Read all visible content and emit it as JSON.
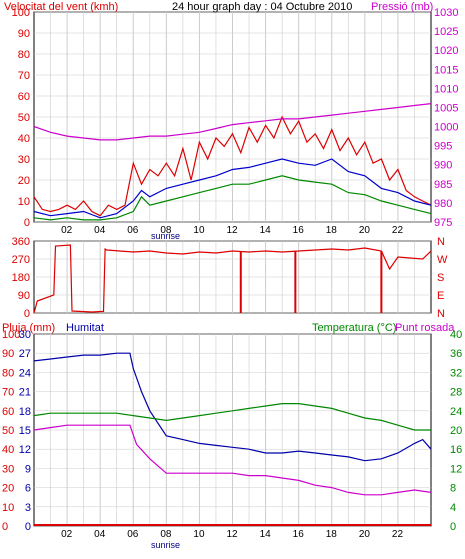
{
  "header": {
    "wind_label": "Velocitat del vent (kmh)",
    "title": "24 hour graph day : 04 Octubre 2010",
    "pressure_label": "Pressió (mb)"
  },
  "bottom_header": {
    "rain_label": "Pluja (mm)",
    "humidity_label": "Humitat",
    "temp_label": "Temperatura (°C)",
    "dew_label": "Punt rosada"
  },
  "x_ticks": [
    "02",
    "04",
    "06",
    "08",
    "10",
    "12",
    "14",
    "16",
    "18",
    "20",
    "22"
  ],
  "sunrise_label": "sunrise",
  "colors": {
    "wind_gust": "#dd0000",
    "wind_avg": "#0000cc",
    "wind_speed": "#008800",
    "pressure": "#cc00cc",
    "direction": "#dd0000",
    "humidity": "#0000aa",
    "temperature": "#008800",
    "dew_point": "#cc00cc",
    "rain": "#dd0000",
    "grid": "#cccccc",
    "frame": "#000000"
  },
  "chart_data": [
    {
      "type": "line",
      "panel": "wind_pressure",
      "x_unit": "hour",
      "xlim": [
        0,
        24
      ],
      "y_left": {
        "label": "Velocitat del vent (kmh)",
        "ticks": [
          0,
          10,
          20,
          30,
          40,
          50,
          60,
          70,
          80,
          90,
          100
        ],
        "ylim": [
          0,
          100
        ]
      },
      "y_right": {
        "label": "Pressió (mb)",
        "ticks": [
          975,
          980,
          985,
          990,
          995,
          1000,
          1005,
          1010,
          1015,
          1020,
          1025,
          1030
        ],
        "ylim": [
          975,
          1030
        ]
      },
      "grid": true,
      "series": [
        {
          "key": "gust",
          "axis": "left",
          "x": [
            0,
            0.5,
            1,
            1.5,
            2,
            2.5,
            3,
            3.5,
            4,
            4.5,
            5,
            5.5,
            6,
            6.5,
            7,
            7.5,
            8,
            8.5,
            9,
            9.5,
            10,
            10.5,
            11,
            11.5,
            12,
            12.5,
            13,
            13.5,
            14,
            14.5,
            15,
            15.5,
            16,
            16.5,
            17,
            17.5,
            18,
            18.5,
            19,
            19.5,
            20,
            20.5,
            21,
            21.5,
            22,
            22.5,
            23,
            23.5,
            24
          ],
          "values": [
            12,
            6,
            5,
            6,
            8,
            6,
            10,
            5,
            3,
            8,
            6,
            8,
            28,
            18,
            25,
            22,
            28,
            22,
            35,
            20,
            38,
            30,
            40,
            36,
            42,
            33,
            45,
            38,
            46,
            40,
            50,
            42,
            48,
            38,
            42,
            35,
            44,
            34,
            40,
            32,
            38,
            28,
            30,
            20,
            25,
            15,
            12,
            10,
            8
          ]
        },
        {
          "key": "average",
          "axis": "left",
          "x": [
            0,
            1,
            2,
            3,
            4,
            5,
            6,
            6.5,
            7,
            8,
            9,
            10,
            11,
            12,
            13,
            14,
            15,
            16,
            17,
            18,
            19,
            20,
            21,
            22,
            23,
            24
          ],
          "values": [
            5,
            3,
            4,
            5,
            2,
            4,
            10,
            15,
            12,
            16,
            18,
            20,
            22,
            25,
            26,
            28,
            30,
            28,
            27,
            30,
            24,
            22,
            16,
            14,
            10,
            8
          ]
        },
        {
          "key": "speed",
          "axis": "left",
          "x": [
            0,
            1,
            2,
            3,
            4,
            5,
            6,
            6.5,
            7,
            8,
            9,
            10,
            11,
            12,
            13,
            14,
            15,
            16,
            17,
            18,
            19,
            20,
            21,
            22,
            23,
            24
          ],
          "values": [
            2,
            1,
            2,
            1,
            1,
            2,
            5,
            12,
            8,
            10,
            12,
            14,
            16,
            18,
            18,
            20,
            22,
            20,
            19,
            18,
            14,
            13,
            10,
            8,
            6,
            4
          ]
        },
        {
          "key": "pressure",
          "axis": "right",
          "x": [
            0,
            1,
            2,
            3,
            4,
            5,
            6,
            7,
            8,
            9,
            10,
            11,
            12,
            13,
            14,
            15,
            16,
            17,
            18,
            19,
            20,
            21,
            22,
            23,
            24
          ],
          "values": [
            1000,
            998.5,
            997.5,
            997,
            996.5,
            996.5,
            997,
            997.5,
            997.5,
            998,
            998.5,
            999.5,
            1000.5,
            1001,
            1001.5,
            1002,
            1002,
            1002.5,
            1003,
            1003.5,
            1004,
            1004.5,
            1005,
            1005.5,
            1006
          ]
        }
      ]
    },
    {
      "type": "line",
      "panel": "wind_direction",
      "x_unit": "hour",
      "xlim": [
        0,
        24
      ],
      "y_left": {
        "ticks": [
          0,
          90,
          180,
          270,
          360
        ],
        "ylim": [
          0,
          360
        ]
      },
      "y_right": {
        "ticks": [
          "N",
          "E",
          "S",
          "W",
          "N"
        ]
      },
      "grid": true,
      "series": [
        {
          "key": "direction",
          "x": [
            0,
            0.2,
            1.2,
            1.3,
            2.2,
            2.3,
            3.5,
            4.2,
            4.3,
            4.4,
            6.0,
            7,
            8,
            9,
            10,
            11,
            12,
            13,
            14,
            15,
            16,
            17,
            18,
            19,
            20,
            21,
            21.5,
            22,
            23.5,
            24
          ],
          "values": [
            0,
            60,
            90,
            335,
            340,
            10,
            5,
            8,
            320,
            315,
            305,
            310,
            300,
            295,
            305,
            300,
            310,
            305,
            310,
            305,
            310,
            315,
            320,
            315,
            325,
            310,
            220,
            280,
            270,
            310
          ],
          "spikes": [
            [
              12.5,
              0
            ],
            [
              15.8,
              0
            ],
            [
              21,
              0
            ]
          ]
        }
      ]
    },
    {
      "type": "line",
      "panel": "rain_humidity_temperature",
      "x_unit": "hour",
      "xlim": [
        0,
        24
      ],
      "y_left_rain": {
        "label": "Pluja (mm)",
        "ticks": [
          0,
          3,
          6,
          9,
          12,
          15,
          18,
          21,
          24,
          27,
          30
        ],
        "ylim": [
          0,
          30
        ]
      },
      "y_left_hum": {
        "label": "Humitat",
        "ticks": [
          0,
          10,
          20,
          30,
          40,
          50,
          60,
          70,
          80,
          90,
          100
        ],
        "ylim": [
          0,
          100
        ]
      },
      "y_right": {
        "label": "Temperatura (°C)",
        "ticks": [
          0,
          4,
          8,
          12,
          16,
          20,
          24,
          28,
          32,
          36,
          40
        ],
        "ylim": [
          0,
          40
        ]
      },
      "grid": true,
      "series": [
        {
          "key": "humidity",
          "axis": "hum",
          "x": [
            0,
            1,
            2,
            3,
            4,
            5,
            5.8,
            6,
            6.5,
            7,
            8,
            9,
            10,
            11,
            12,
            13,
            14,
            15,
            16,
            17,
            18,
            19,
            20,
            21,
            22,
            23,
            23.5,
            24
          ],
          "values": [
            86,
            87,
            88,
            89,
            89,
            90,
            90,
            82,
            70,
            60,
            47,
            45,
            43,
            42,
            41,
            40,
            38,
            38,
            39,
            38,
            37,
            36,
            34,
            35,
            38,
            43,
            45,
            40
          ]
        },
        {
          "key": "temperature",
          "axis": "temp",
          "x": [
            0,
            1,
            2,
            3,
            4,
            5,
            6,
            7,
            8,
            9,
            10,
            11,
            12,
            13,
            14,
            15,
            16,
            17,
            18,
            19,
            20,
            21,
            22,
            23,
            24
          ],
          "values": [
            23,
            23.5,
            23.5,
            23.5,
            23.5,
            23.5,
            23,
            22.5,
            22,
            22.5,
            23,
            23.5,
            24,
            24.5,
            25,
            25.5,
            25.5,
            25,
            24.5,
            23.5,
            22.5,
            22,
            21,
            20,
            20
          ]
        },
        {
          "key": "dew_point",
          "axis": "temp",
          "x": [
            0,
            1,
            2,
            3,
            4,
            5,
            5.8,
            6.2,
            7,
            8,
            9,
            10,
            11,
            12,
            13,
            14,
            15,
            16,
            17,
            18,
            19,
            20,
            21,
            22,
            23,
            24
          ],
          "values": [
            20,
            20.5,
            21,
            21,
            21,
            21,
            21,
            17,
            14,
            11,
            11,
            11,
            11,
            11,
            10.5,
            10.5,
            10,
            9.5,
            8.5,
            8,
            7,
            6.5,
            6.5,
            7,
            7.5,
            7
          ]
        },
        {
          "key": "rain",
          "axis": "rain",
          "x": [
            0,
            24
          ],
          "values": [
            0,
            0
          ]
        }
      ]
    }
  ]
}
